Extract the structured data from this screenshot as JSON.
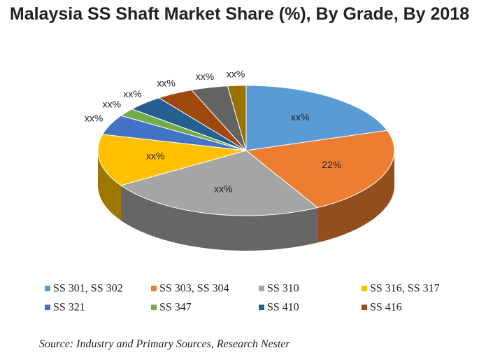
{
  "chart_data": {
    "type": "pie3d",
    "title": "Malaysia SS Shaft Market Share (%), By Grade, By 2018",
    "categories": [
      "SS 301, SS 302",
      "SS 303, SS 304",
      "SS 310",
      "SS 316, SS 317",
      "SS 321",
      "SS 347",
      "SS 410",
      "SS 416",
      null,
      null
    ],
    "values": [
      20,
      22,
      24,
      13,
      5,
      2,
      4,
      4,
      4,
      2
    ],
    "value_labels": [
      "xx%",
      "22%",
      "xx%",
      "xx%",
      "xx%",
      "xx%",
      "xx%",
      "xx%",
      "xx%",
      "xx%"
    ],
    "colors": [
      "#5b9bd5",
      "#ed7d31",
      "#a5a5a5",
      "#ffc000",
      "#4472c4",
      "#70ad47",
      "#255e91",
      "#9e480e",
      "#636363",
      "#997300"
    ],
    "source": "Source: Industry and Primary Sources, Research Nester"
  }
}
